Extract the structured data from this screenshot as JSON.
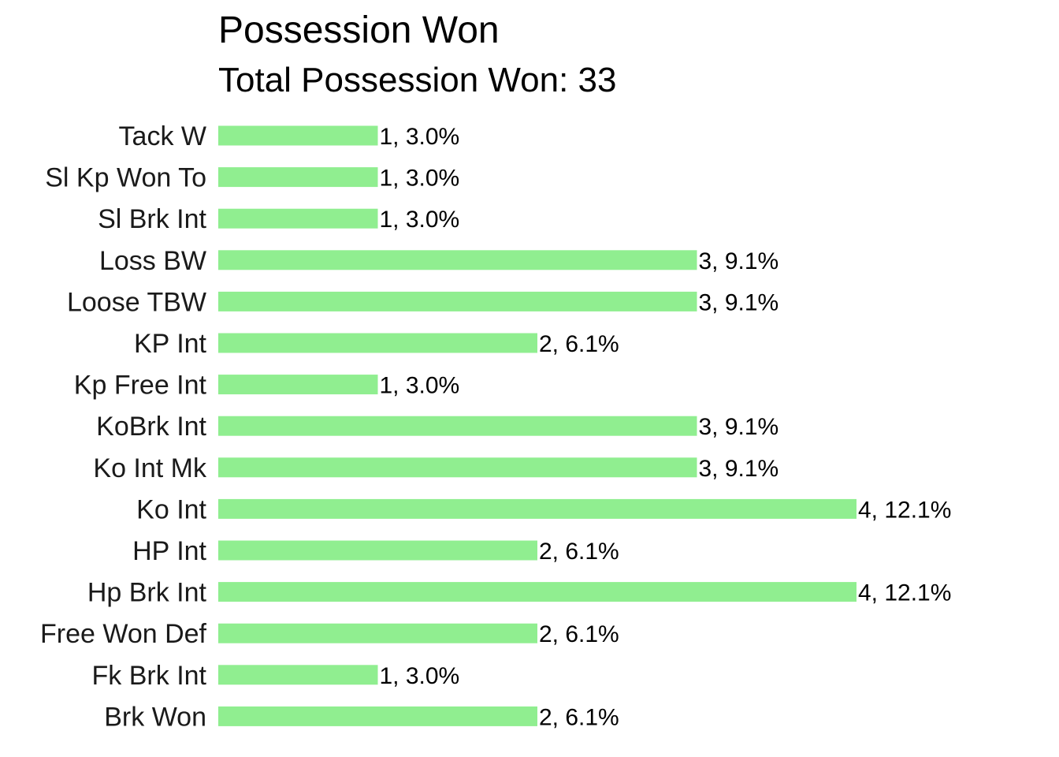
{
  "chart_data": {
    "type": "bar",
    "orientation": "horizontal",
    "title": "Possession Won",
    "subtitle": "Total Possession Won: 33",
    "xlabel": "",
    "ylabel": "",
    "grid": false,
    "legend": "none",
    "bar_color": "#90EE90",
    "xlim": [
      0,
      4
    ],
    "categories": [
      "Tack W",
      "Sl Kp Won To",
      "Sl Brk Int",
      "Loss BW",
      "Loose TBW",
      "KP Int",
      "Kp Free Int",
      "KoBrk Int",
      "Ko Int Mk",
      "Ko Int",
      "HP Int",
      "Hp Brk Int",
      "Free Won Def",
      "Fk Brk Int",
      "Brk Won"
    ],
    "values": [
      1,
      1,
      1,
      3,
      3,
      2,
      1,
      3,
      3,
      4,
      2,
      4,
      2,
      1,
      2
    ],
    "data_labels": [
      "1, 3.0%",
      "1, 3.0%",
      "1, 3.0%",
      "3, 9.1%",
      "3, 9.1%",
      "2, 6.1%",
      "1, 3.0%",
      "3, 9.1%",
      "3, 9.1%",
      "4, 12.1%",
      "2, 6.1%",
      "4, 12.1%",
      "2, 6.1%",
      "1, 3.0%",
      "2, 6.1%"
    ]
  }
}
